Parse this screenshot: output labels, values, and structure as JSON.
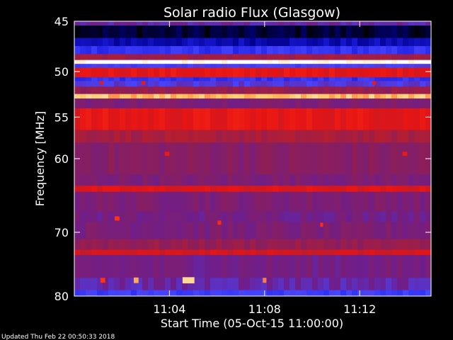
{
  "chart_data": {
    "type": "heatmap",
    "title": "Solar radio Flux (Glasgow)",
    "xlabel": "Start Time (05-Oct-15 11:00:00)",
    "ylabel": "Frequency [MHz]",
    "y_scale": "log",
    "ylim": [
      45,
      80
    ],
    "xlim_minutes": [
      0,
      15
    ],
    "x_ticks": [
      {
        "label": "11:04",
        "value": 4
      },
      {
        "label": "11:08",
        "value": 8
      },
      {
        "label": "11:12",
        "value": 12
      }
    ],
    "y_ticks": [
      45,
      50,
      55,
      60,
      70,
      80
    ],
    "colormap": [
      "#000000",
      "#00008c",
      "#1e1ee6",
      "#4646ff",
      "#6e1e8c",
      "#8c1e5a",
      "#b41e32",
      "#e61414",
      "#ff3214",
      "#ffc864",
      "#ffffff"
    ],
    "frequency_bands": [
      {
        "f0": 45.0,
        "f1": 45.4,
        "level": 0.38
      },
      {
        "f0": 45.4,
        "f1": 46.6,
        "level": 0.04
      },
      {
        "f0": 46.6,
        "f1": 47.4,
        "level": 0.14
      },
      {
        "f0": 47.4,
        "f1": 48.2,
        "level": 0.25
      },
      {
        "f0": 48.2,
        "f1": 48.8,
        "level": 0.55
      },
      {
        "f0": 48.8,
        "f1": 49.2,
        "level": 1.0
      },
      {
        "f0": 49.2,
        "f1": 49.6,
        "level": 0.3
      },
      {
        "f0": 49.6,
        "f1": 50.6,
        "level": 0.7
      },
      {
        "f0": 50.6,
        "f1": 51.0,
        "level": 0.25
      },
      {
        "f0": 51.0,
        "f1": 51.6,
        "level": 0.33
      },
      {
        "f0": 51.6,
        "f1": 52.4,
        "level": 0.52
      },
      {
        "f0": 52.4,
        "f1": 52.9,
        "level": 0.9
      },
      {
        "f0": 52.9,
        "f1": 54.0,
        "level": 0.45
      },
      {
        "f0": 54.0,
        "f1": 56.5,
        "level": 0.7
      },
      {
        "f0": 56.5,
        "f1": 58.0,
        "level": 0.57
      },
      {
        "f0": 58.0,
        "f1": 62.0,
        "level": 0.48
      },
      {
        "f0": 62.0,
        "f1": 63.5,
        "level": 0.45
      },
      {
        "f0": 63.5,
        "f1": 64.3,
        "level": 0.68
      },
      {
        "f0": 64.3,
        "f1": 67.0,
        "level": 0.45
      },
      {
        "f0": 67.0,
        "f1": 68.5,
        "level": 0.42
      },
      {
        "f0": 68.5,
        "f1": 71.0,
        "level": 0.44
      },
      {
        "f0": 71.0,
        "f1": 72.6,
        "level": 0.52
      },
      {
        "f0": 72.6,
        "f1": 73.4,
        "level": 0.66
      },
      {
        "f0": 73.4,
        "f1": 77.0,
        "level": 0.42
      },
      {
        "f0": 77.0,
        "f1": 79.0,
        "level": 0.38
      },
      {
        "f0": 79.0,
        "f1": 80.0,
        "level": 0.28
      }
    ],
    "bursts": [
      {
        "t": 1.15,
        "f": 51.2,
        "dt": 0.15,
        "df": 0.4,
        "level": 0.72
      },
      {
        "t": 2.9,
        "f": 51.2,
        "dt": 0.15,
        "df": 0.4,
        "level": 0.72
      },
      {
        "t": 12.6,
        "f": 51.2,
        "dt": 0.15,
        "df": 0.4,
        "level": 0.72
      },
      {
        "t": 3.9,
        "f": 59.4,
        "dt": 0.2,
        "df": 0.5,
        "level": 0.72
      },
      {
        "t": 13.9,
        "f": 59.4,
        "dt": 0.2,
        "df": 0.5,
        "level": 0.72
      },
      {
        "t": 4.8,
        "f": 77.4,
        "dt": 0.5,
        "df": 1.0,
        "level": 0.93
      },
      {
        "t": 2.6,
        "f": 77.4,
        "dt": 0.2,
        "df": 0.9,
        "level": 0.88
      },
      {
        "t": 8.0,
        "f": 77.4,
        "dt": 0.15,
        "df": 0.8,
        "level": 0.85
      },
      {
        "t": 1.2,
        "f": 77.4,
        "dt": 0.2,
        "df": 0.8,
        "level": 0.8
      },
      {
        "t": 1.8,
        "f": 68.0,
        "dt": 0.2,
        "df": 0.6,
        "level": 0.8
      },
      {
        "t": 6.1,
        "f": 68.6,
        "dt": 0.15,
        "df": 0.6,
        "level": 0.78
      },
      {
        "t": 10.4,
        "f": 68.9,
        "dt": 0.12,
        "df": 0.6,
        "level": 0.78
      }
    ]
  },
  "footer": {
    "updated": "Updated Thu Feb 22 00:50:33 2018"
  }
}
